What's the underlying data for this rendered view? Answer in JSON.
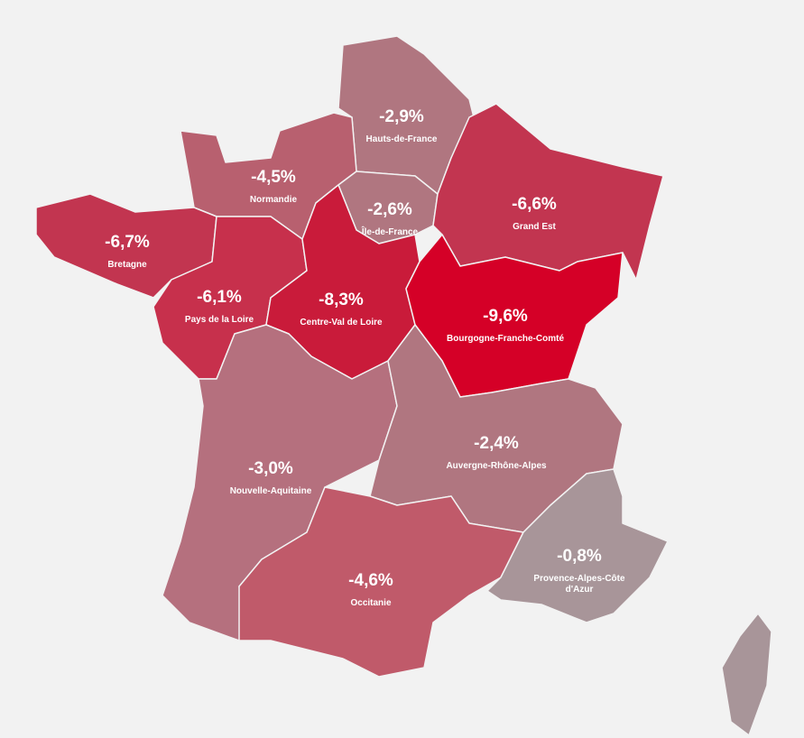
{
  "regions": [
    {
      "name": "Hauts-de-France",
      "value": "-2,9%",
      "color": "#b07680"
    },
    {
      "name": "Normandie",
      "value": "-4,5%",
      "color": "#b8606f"
    },
    {
      "name": "Île-de-France",
      "value": "-2,6%",
      "color": "#b07680"
    },
    {
      "name": "Grand Est",
      "value": "-6,6%",
      "color": "#c23550"
    },
    {
      "name": "Bretagne",
      "value": "-6,7%",
      "color": "#c23550"
    },
    {
      "name": "Pays de la Loire",
      "value": "-6,1%",
      "color": "#c7304c"
    },
    {
      "name": "Centre-Val de Loire",
      "value": "-8,3%",
      "color": "#c91b3a"
    },
    {
      "name": "Bourgogne-Franche-Comté",
      "value": "-9,6%",
      "color": "#d50027"
    },
    {
      "name": "Nouvelle-Aquitaine",
      "value": "-3,0%",
      "color": "#b5707e"
    },
    {
      "name": "Auvergne-Rhône-Alpes",
      "value": "-2,4%",
      "color": "#b07680"
    },
    {
      "name": "Occitanie",
      "value": "-4,6%",
      "color": "#c05a6a"
    },
    {
      "name": "Provence-Alpes-Côte d'Azur",
      "value": "-0,8%",
      "color": "#a89599"
    }
  ]
}
